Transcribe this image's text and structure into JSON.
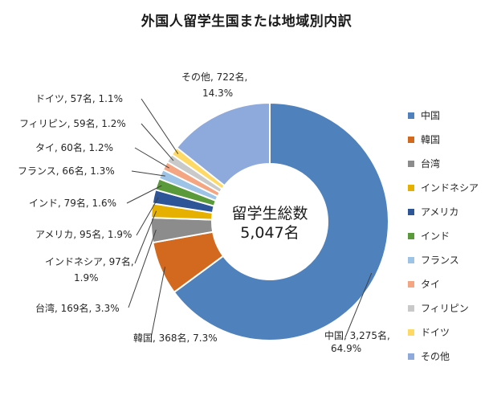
{
  "chart_data": {
    "type": "pie",
    "variant": "donut",
    "title": "外国人留学生国または地域別内訳",
    "center_label": [
      "留学生総数",
      "5,047名"
    ],
    "legend_position": "right",
    "slices": [
      {
        "name": "中国",
        "value": 3275,
        "color": "#4f81bd",
        "label": [
          "中国, 3,275名,",
          "64.9%"
        ]
      },
      {
        "name": "韓国",
        "value": 368,
        "color": "#d2691e",
        "label": [
          "韓国, 368名, 7.3%"
        ]
      },
      {
        "name": "台湾",
        "value": 169,
        "color": "#8c8c8c",
        "label": [
          "台湾, 169名, 3.3%"
        ]
      },
      {
        "name": "インドネシア",
        "value": 97,
        "color": "#e6b000",
        "label": [
          "インドネシア, 97名,",
          "1.9%"
        ]
      },
      {
        "name": "アメリカ",
        "value": 95,
        "color": "#2e5598",
        "label": [
          "アメリカ, 95名, 1.9%"
        ]
      },
      {
        "name": "インド",
        "value": 79,
        "color": "#5a9a3a",
        "label": [
          "インド, 79名, 1.6%"
        ]
      },
      {
        "name": "フランス",
        "value": 66,
        "color": "#9dc3e6",
        "label": [
          "フランス, 66名, 1.3%"
        ]
      },
      {
        "name": "タイ",
        "value": 60,
        "color": "#f4a582",
        "label": [
          "タイ, 60名, 1.2%"
        ]
      },
      {
        "name": "フィリピン",
        "value": 59,
        "color": "#c9c9c9",
        "label": [
          "フィリピン, 59名, 1.2%"
        ]
      },
      {
        "name": "ドイツ",
        "value": 57,
        "color": "#ffd966",
        "label": [
          "ドイツ, 57名, 1.1%"
        ]
      },
      {
        "name": "その他",
        "value": 722,
        "color": "#8ea9db",
        "label": [
          "その他, 722名,",
          "14.3%"
        ]
      }
    ],
    "legend": [
      "中国",
      "韓国",
      "台湾",
      "インドネシア",
      "アメリカ",
      "インド",
      "フランス",
      "タイ",
      "フィリピン",
      "ドイツ",
      "その他"
    ]
  }
}
